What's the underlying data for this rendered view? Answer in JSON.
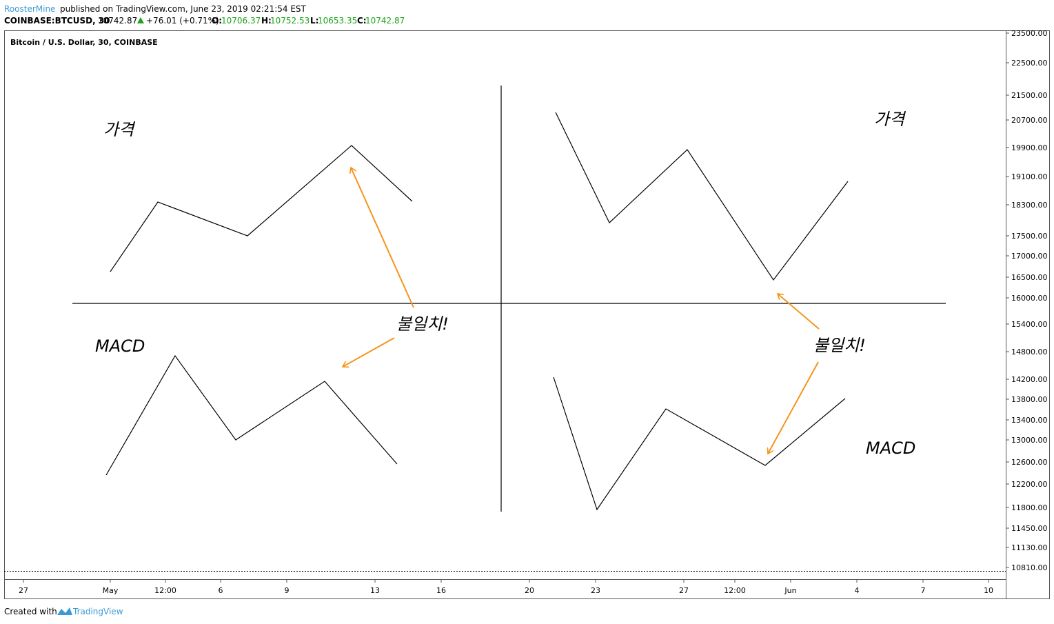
{
  "header": {
    "author": "RoosterMine",
    "published": "published on TradingView.com, June 23, 2019 02:21:54 EST"
  },
  "symbol_bar": {
    "symbol": "COINBASE:BTCUSD, 30",
    "last": "10742.87",
    "change": "+76.01 (+0.71%)",
    "open_label": "O:",
    "open": "10706.37",
    "high_label": "H:",
    "high": "10752.53",
    "low_label": "L:",
    "low": "10653.35",
    "close_label": "C:",
    "close": "10742.87"
  },
  "chart": {
    "title": "Bitcoin / U.S. Dollar, 30, COINBASE",
    "price_axis": [
      "23500.00",
      "22500.00",
      "21500.00",
      "20700.00",
      "19900.00",
      "19100.00",
      "18300.00",
      "17500.00",
      "17000.00",
      "16500.00",
      "16000.00",
      "15400.00",
      "14800.00",
      "14200.00",
      "13800.00",
      "13400.00",
      "13000.00",
      "12600.00",
      "12200.00",
      "11800.00",
      "11450.00",
      "11130.00",
      "10810.00"
    ],
    "time_axis": [
      "27",
      "May",
      "12:00",
      "6",
      "9",
      "13",
      "16",
      "20",
      "23",
      "27",
      "12:00",
      "Jun",
      "4",
      "7",
      "10"
    ]
  },
  "annotations": {
    "left_price": "가격",
    "left_macd": "MACD",
    "left_divergence": "불일치!",
    "right_price": "가격",
    "right_divergence": "불일치!",
    "right_macd": "MACD"
  },
  "footer": {
    "created_with": "Created with",
    "brand": "TradingView"
  }
}
